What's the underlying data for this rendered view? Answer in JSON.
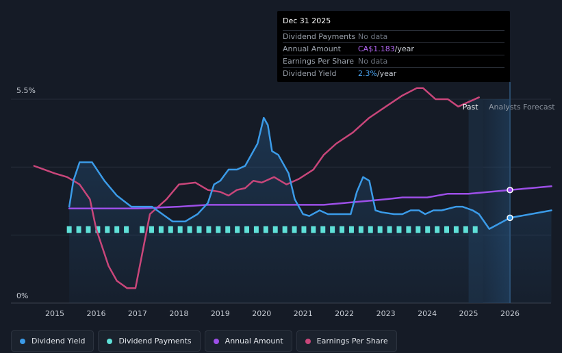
{
  "tooltip": {
    "date": "Dec 31 2025",
    "rows": [
      {
        "label": "Dividend Payments",
        "value": "No data",
        "unit": ""
      },
      {
        "label": "Annual Amount",
        "value": "CA$1.183",
        "unit": "/year"
      },
      {
        "label": "Earnings Per Share",
        "value": "No data",
        "unit": ""
      },
      {
        "label": "Dividend Yield",
        "value": "2.3%",
        "unit": "/year"
      }
    ]
  },
  "legend": [
    {
      "label": "Dividend Yield",
      "color": "#3b9be8"
    },
    {
      "label": "Dividend Payments",
      "color": "#5fe0d8"
    },
    {
      "label": "Annual Amount",
      "color": "#9d4fe8"
    },
    {
      "label": "Earnings Per Share",
      "color": "#c9467a"
    }
  ],
  "chart_data": {
    "type": "line",
    "title": "",
    "ylim": [
      0,
      5.5
    ],
    "y_tick_labels": [
      "5.5%",
      "0%"
    ],
    "x_tick_labels": [
      "2015",
      "2016",
      "2017",
      "2018",
      "2019",
      "2020",
      "2021",
      "2022",
      "2023",
      "2024",
      "2025",
      "2026"
    ],
    "x_range": [
      2014.5,
      2027.0
    ],
    "past_label": "Past",
    "forecast_label": "Analysts Forecast",
    "past_end": 2025.0,
    "forecast_start": 2025.35,
    "forecast_end": 2026.0,
    "series": [
      {
        "name": "Dividend Yield",
        "color": "#3b9be8",
        "x": [
          2015.35,
          2015.45,
          2015.6,
          2015.9,
          2016.2,
          2016.5,
          2016.85,
          2017.35,
          2017.6,
          2017.85,
          2018.15,
          2018.45,
          2018.7,
          2018.85,
          2019.0,
          2019.2,
          2019.4,
          2019.6,
          2019.9,
          2020.05,
          2020.15,
          2020.25,
          2020.4,
          2020.65,
          2020.8,
          2021.0,
          2021.15,
          2021.4,
          2021.6,
          2022.0,
          2022.15,
          2022.3,
          2022.45,
          2022.6,
          2022.75,
          2022.9,
          2023.2,
          2023.4,
          2023.6,
          2023.8,
          2023.95,
          2024.15,
          2024.35,
          2024.7,
          2024.85,
          2025.1,
          2025.25,
          2025.5,
          2026.0,
          2026.5,
          2027.0
        ],
        "y": [
          2.6,
          3.3,
          3.8,
          3.8,
          3.3,
          2.9,
          2.6,
          2.6,
          2.4,
          2.2,
          2.2,
          2.4,
          2.7,
          3.2,
          3.3,
          3.6,
          3.6,
          3.7,
          4.3,
          5.0,
          4.8,
          4.1,
          4.0,
          3.5,
          2.8,
          2.4,
          2.35,
          2.5,
          2.4,
          2.4,
          2.4,
          3.0,
          3.4,
          3.3,
          2.5,
          2.45,
          2.4,
          2.4,
          2.5,
          2.5,
          2.4,
          2.5,
          2.5,
          2.6,
          2.6,
          2.5,
          2.4,
          2.0,
          2.3,
          2.4,
          2.5
        ]
      },
      {
        "name": "Annual Amount",
        "color": "#9d4fe8",
        "x": [
          2015.35,
          2016.0,
          2017.0,
          2018.0,
          2018.7,
          2019.5,
          2020.5,
          2021.5,
          2022.0,
          2022.5,
          2023.0,
          2023.4,
          2024.0,
          2024.5,
          2025.0,
          2025.5,
          2026.0,
          2026.5,
          2027.0
        ],
        "y": [
          2.55,
          2.55,
          2.55,
          2.6,
          2.65,
          2.65,
          2.65,
          2.65,
          2.7,
          2.75,
          2.8,
          2.85,
          2.85,
          2.95,
          2.95,
          3.0,
          3.05,
          3.1,
          3.15
        ]
      },
      {
        "name": "Earnings Per Share",
        "color": "#c9467a",
        "x": [
          2014.5,
          2014.75,
          2015.0,
          2015.3,
          2015.6,
          2015.85,
          2016.0,
          2016.3,
          2016.5,
          2016.75,
          2016.95,
          2017.3,
          2017.7,
          2018.0,
          2018.4,
          2018.7,
          2019.0,
          2019.2,
          2019.4,
          2019.6,
          2019.8,
          2020.0,
          2020.3,
          2020.6,
          2020.9,
          2021.25,
          2021.5,
          2021.8,
          2022.2,
          2022.6,
          2023.0,
          2023.4,
          2023.75,
          2023.9,
          2024.2,
          2024.5,
          2024.75,
          2024.95,
          2025.25
        ],
        "y": [
          3.7,
          3.6,
          3.5,
          3.4,
          3.2,
          2.8,
          2.0,
          1.0,
          0.6,
          0.4,
          0.4,
          2.4,
          2.8,
          3.2,
          3.25,
          3.05,
          3.0,
          2.9,
          3.05,
          3.1,
          3.3,
          3.25,
          3.4,
          3.2,
          3.35,
          3.6,
          4.0,
          4.3,
          4.6,
          5.0,
          5.3,
          5.6,
          5.8,
          5.8,
          5.5,
          5.5,
          5.3,
          5.4,
          5.55
        ]
      }
    ],
    "bar_series": {
      "name": "Dividend Payments",
      "color": "#5fe0d8",
      "level": 2.0,
      "x": [
        2015.35,
        2015.58,
        2015.81,
        2016.04,
        2016.27,
        2016.5,
        2016.73,
        2017.11,
        2017.34,
        2017.57,
        2017.8,
        2018.03,
        2018.26,
        2018.49,
        2018.72,
        2018.95,
        2019.18,
        2019.41,
        2019.64,
        2019.87,
        2020.1,
        2020.33,
        2020.56,
        2020.79,
        2021.02,
        2021.25,
        2021.48,
        2021.71,
        2021.94,
        2022.17,
        2022.4,
        2022.63,
        2022.86,
        2023.09,
        2023.32,
        2023.55,
        2023.78,
        2024.01,
        2024.24,
        2024.47,
        2024.7,
        2024.93,
        2025.16
      ]
    },
    "markers": [
      {
        "series": "Annual Amount",
        "x": 2026.0,
        "y": 3.05
      },
      {
        "series": "Dividend Yield",
        "x": 2026.0,
        "y": 2.3
      }
    ]
  }
}
